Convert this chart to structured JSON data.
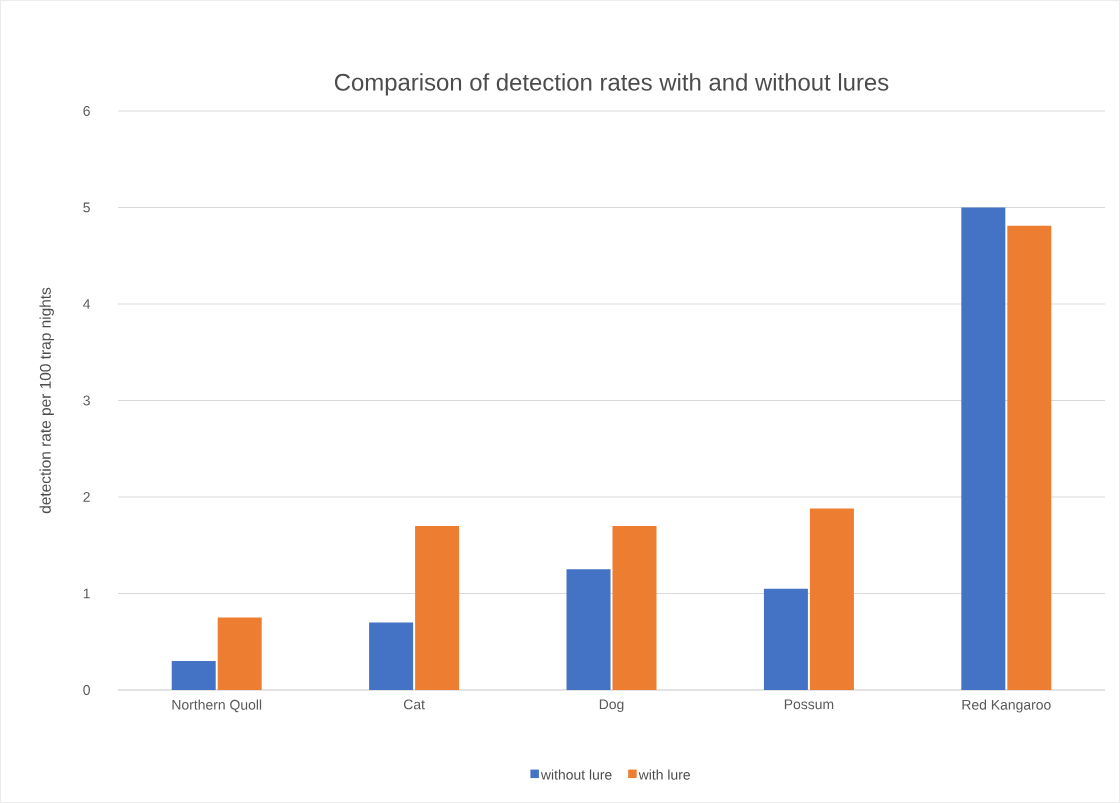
{
  "chart_data": {
    "type": "bar",
    "title": "Comparison of detection rates with and without lures",
    "ylabel": "detection rate per 100 trap nights",
    "categories": [
      "Northern Quoll",
      "Cat",
      "Dog",
      "Possum",
      "Red Kangaroo"
    ],
    "series": [
      {
        "name": "without lure",
        "color": "#4472c4",
        "values": [
          0.3,
          0.7,
          1.25,
          1.05,
          5.0
        ]
      },
      {
        "name": "with lure",
        "color": "#ed7d31",
        "values": [
          0.75,
          1.7,
          1.7,
          1.88,
          4.81
        ]
      }
    ],
    "ylim": [
      0,
      6
    ],
    "yticks": [
      0,
      1,
      2,
      3,
      4,
      5,
      6
    ],
    "grid": "y",
    "legend": "bottom"
  }
}
